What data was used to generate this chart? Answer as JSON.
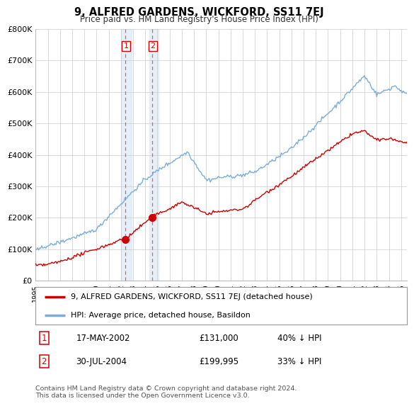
{
  "title": "9, ALFRED GARDENS, WICKFORD, SS11 7EJ",
  "subtitle": "Price paid vs. HM Land Registry's House Price Index (HPI)",
  "legend_line1": "9, ALFRED GARDENS, WICKFORD, SS11 7EJ (detached house)",
  "legend_line2": "HPI: Average price, detached house, Basildon",
  "transaction1_label": "1",
  "transaction1_date": "17-MAY-2002",
  "transaction1_price": "£131,000",
  "transaction1_hpi": "40% ↓ HPI",
  "transaction2_label": "2",
  "transaction2_date": "30-JUL-2004",
  "transaction2_price": "£199,995",
  "transaction2_hpi": "33% ↓ HPI",
  "footer": "Contains HM Land Registry data © Crown copyright and database right 2024.\nThis data is licensed under the Open Government Licence v3.0.",
  "red_line_color": "#cc0000",
  "blue_line_color": "#7aaddb",
  "highlight_color": "#dce8f5",
  "grid_color": "#cccccc",
  "background_color": "#ffffff",
  "ylim": [
    0,
    800000
  ],
  "yticks": [
    0,
    100000,
    200000,
    300000,
    400000,
    500000,
    600000,
    700000,
    800000
  ],
  "ytick_labels": [
    "£0",
    "£100K",
    "£200K",
    "£300K",
    "£400K",
    "£500K",
    "£600K",
    "£700K",
    "£800K"
  ],
  "transaction1_year": 2002.37,
  "transaction2_year": 2004.58,
  "marker1_value": 131000,
  "marker2_value": 199995,
  "xmin": 1995.0,
  "xmax": 2025.5
}
